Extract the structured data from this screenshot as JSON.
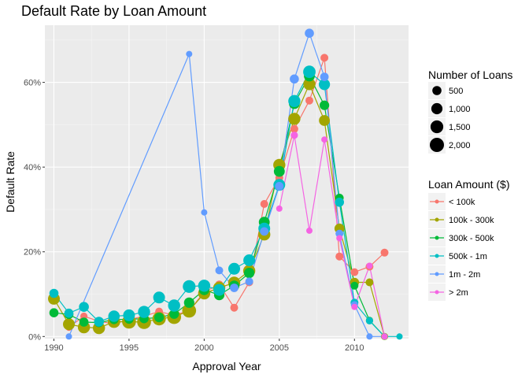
{
  "chart_data": {
    "type": "line",
    "title": "Default Rate by Loan Amount",
    "xlabel": "Approval Year",
    "ylabel": "Default Rate",
    "xlim": [
      1989.4,
      2013.6
    ],
    "ylim": [
      -0.5,
      73.5
    ],
    "x_ticks": [
      1990,
      1995,
      2000,
      2005,
      2010
    ],
    "y_ticks": [
      0,
      20,
      40,
      60
    ],
    "y_tick_labels": [
      "0%",
      "20%",
      "40%",
      "60%"
    ],
    "grid": true,
    "legend_position": "right",
    "size_legend": {
      "title": "Number of Loans",
      "entries": [
        {
          "label": "500",
          "value": 500
        },
        {
          "label": "1,000",
          "value": 1000
        },
        {
          "label": "1,500",
          "value": 1500
        },
        {
          "label": "2,000",
          "value": 2000
        }
      ]
    },
    "color_legend_title": "Loan Amount ($)",
    "series": [
      {
        "name": "< 100k",
        "color": "#F8766D",
        "points": [
          {
            "x": 1991,
            "y": 2.2,
            "n": 200
          },
          {
            "x": 1992,
            "y": 4.8,
            "n": 200
          },
          {
            "x": 1993,
            "y": 3.6,
            "n": 200
          },
          {
            "x": 1994,
            "y": 3.0,
            "n": 200
          },
          {
            "x": 1995,
            "y": 4.0,
            "n": 300
          },
          {
            "x": 1996,
            "y": 4.8,
            "n": 300
          },
          {
            "x": 1997,
            "y": 5.9,
            "n": 300
          },
          {
            "x": 1998,
            "y": 5.0,
            "n": 300
          },
          {
            "x": 1999,
            "y": 6.1,
            "n": 300
          },
          {
            "x": 2000,
            "y": 10.5,
            "n": 300
          },
          {
            "x": 2001,
            "y": 12.3,
            "n": 300
          },
          {
            "x": 2002,
            "y": 6.8,
            "n": 300
          },
          {
            "x": 2003,
            "y": 12.8,
            "n": 300
          },
          {
            "x": 2004,
            "y": 31.3,
            "n": 300
          },
          {
            "x": 2005,
            "y": 37.5,
            "n": 300
          },
          {
            "x": 2006,
            "y": 49.0,
            "n": 300
          },
          {
            "x": 2007,
            "y": 55.7,
            "n": 300
          },
          {
            "x": 2008,
            "y": 65.8,
            "n": 300
          },
          {
            "x": 2009,
            "y": 18.9,
            "n": 300
          },
          {
            "x": 2010,
            "y": 15.2,
            "n": 300
          },
          {
            "x": 2011,
            "y": 16.5,
            "n": 300
          },
          {
            "x": 2012,
            "y": 19.8,
            "n": 300
          }
        ]
      },
      {
        "name": "100k - 300k",
        "color": "#A3A500",
        "points": [
          {
            "x": 1990,
            "y": 8.9,
            "n": 1200
          },
          {
            "x": 1991,
            "y": 2.9,
            "n": 1200
          },
          {
            "x": 1992,
            "y": 2.2,
            "n": 1300
          },
          {
            "x": 1993,
            "y": 2.0,
            "n": 1300
          },
          {
            "x": 1994,
            "y": 3.5,
            "n": 1400
          },
          {
            "x": 1995,
            "y": 3.5,
            "n": 1900
          },
          {
            "x": 1996,
            "y": 3.4,
            "n": 1900
          },
          {
            "x": 1997,
            "y": 4.2,
            "n": 1700
          },
          {
            "x": 1998,
            "y": 4.6,
            "n": 1900
          },
          {
            "x": 1999,
            "y": 6.1,
            "n": 1900
          },
          {
            "x": 2000,
            "y": 10.2,
            "n": 1300
          },
          {
            "x": 2001,
            "y": 11.5,
            "n": 1300
          },
          {
            "x": 2002,
            "y": 12.7,
            "n": 1300
          },
          {
            "x": 2003,
            "y": 15.5,
            "n": 1300
          },
          {
            "x": 2004,
            "y": 24.1,
            "n": 1300
          },
          {
            "x": 2005,
            "y": 40.5,
            "n": 1300
          },
          {
            "x": 2006,
            "y": 51.4,
            "n": 1300
          },
          {
            "x": 2007,
            "y": 59.6,
            "n": 1300
          },
          {
            "x": 2008,
            "y": 51.0,
            "n": 900
          },
          {
            "x": 2009,
            "y": 25.5,
            "n": 700
          },
          {
            "x": 2010,
            "y": 12.8,
            "n": 500
          },
          {
            "x": 2011,
            "y": 12.8,
            "n": 300
          },
          {
            "x": 2012,
            "y": 0.0,
            "n": 200
          }
        ]
      },
      {
        "name": "300k - 500k",
        "color": "#00BA38",
        "points": [
          {
            "x": 1990,
            "y": 5.6,
            "n": 500
          },
          {
            "x": 1991,
            "y": 5.2,
            "n": 500
          },
          {
            "x": 1992,
            "y": 3.4,
            "n": 500
          },
          {
            "x": 1993,
            "y": 3.3,
            "n": 500
          },
          {
            "x": 1994,
            "y": 4.0,
            "n": 500
          },
          {
            "x": 1995,
            "y": 4.1,
            "n": 500
          },
          {
            "x": 1996,
            "y": 4.2,
            "n": 500
          },
          {
            "x": 1997,
            "y": 4.5,
            "n": 600
          },
          {
            "x": 1998,
            "y": 5.3,
            "n": 600
          },
          {
            "x": 1999,
            "y": 8.0,
            "n": 800
          },
          {
            "x": 2000,
            "y": 11.0,
            "n": 800
          },
          {
            "x": 2001,
            "y": 9.8,
            "n": 800
          },
          {
            "x": 2002,
            "y": 12.0,
            "n": 800
          },
          {
            "x": 2003,
            "y": 15.0,
            "n": 800
          },
          {
            "x": 2004,
            "y": 27.0,
            "n": 900
          },
          {
            "x": 2005,
            "y": 39.0,
            "n": 900
          },
          {
            "x": 2006,
            "y": 55.0,
            "n": 900
          },
          {
            "x": 2007,
            "y": 61.5,
            "n": 900
          },
          {
            "x": 2008,
            "y": 54.6,
            "n": 600
          },
          {
            "x": 2009,
            "y": 32.7,
            "n": 400
          },
          {
            "x": 2010,
            "y": 12.0,
            "n": 300
          },
          {
            "x": 2011,
            "y": 3.8,
            "n": 200
          },
          {
            "x": 2012,
            "y": 0.0,
            "n": 100
          }
        ]
      },
      {
        "name": "500k - 1m",
        "color": "#00BFC4",
        "points": [
          {
            "x": 1990,
            "y": 10.2,
            "n": 500
          },
          {
            "x": 1991,
            "y": 5.5,
            "n": 500
          },
          {
            "x": 1992,
            "y": 7.0,
            "n": 700
          },
          {
            "x": 1993,
            "y": 3.5,
            "n": 700
          },
          {
            "x": 1994,
            "y": 4.8,
            "n": 1100
          },
          {
            "x": 1995,
            "y": 5.0,
            "n": 1200
          },
          {
            "x": 1996,
            "y": 5.8,
            "n": 1300
          },
          {
            "x": 1997,
            "y": 9.2,
            "n": 1200
          },
          {
            "x": 1998,
            "y": 7.3,
            "n": 1300
          },
          {
            "x": 1999,
            "y": 11.8,
            "n": 1500
          },
          {
            "x": 2000,
            "y": 12.0,
            "n": 1300
          },
          {
            "x": 2001,
            "y": 11.0,
            "n": 1200
          },
          {
            "x": 2002,
            "y": 16.0,
            "n": 1200
          },
          {
            "x": 2003,
            "y": 18.0,
            "n": 1200
          },
          {
            "x": 2004,
            "y": 25.5,
            "n": 1200
          },
          {
            "x": 2005,
            "y": 35.8,
            "n": 1200
          },
          {
            "x": 2006,
            "y": 55.6,
            "n": 1300
          },
          {
            "x": 2007,
            "y": 62.5,
            "n": 1400
          },
          {
            "x": 2008,
            "y": 59.5,
            "n": 1000
          },
          {
            "x": 2009,
            "y": 31.7,
            "n": 500
          },
          {
            "x": 2010,
            "y": 8.0,
            "n": 300
          },
          {
            "x": 2011,
            "y": 3.7,
            "n": 200
          },
          {
            "x": 2012,
            "y": 0.0,
            "n": 100
          },
          {
            "x": 2013,
            "y": 0.0,
            "n": 100
          }
        ]
      },
      {
        "name": "1m - 2m",
        "color": "#619CFF",
        "points": [
          {
            "x": 1991,
            "y": 0.0,
            "n": 100
          },
          {
            "x": 1999,
            "y": 66.7,
            "n": 100
          },
          {
            "x": 2000,
            "y": 29.3,
            "n": 100
          },
          {
            "x": 2001,
            "y": 15.6,
            "n": 300
          },
          {
            "x": 2002,
            "y": 11.5,
            "n": 400
          },
          {
            "x": 2003,
            "y": 13.0,
            "n": 300
          },
          {
            "x": 2004,
            "y": 24.8,
            "n": 400
          },
          {
            "x": 2005,
            "y": 35.5,
            "n": 400
          },
          {
            "x": 2006,
            "y": 60.8,
            "n": 500
          },
          {
            "x": 2007,
            "y": 71.6,
            "n": 500
          },
          {
            "x": 2008,
            "y": 61.3,
            "n": 400
          },
          {
            "x": 2009,
            "y": 24.3,
            "n": 300
          },
          {
            "x": 2010,
            "y": 7.5,
            "n": 200
          },
          {
            "x": 2011,
            "y": 0.0,
            "n": 100
          },
          {
            "x": 2012,
            "y": 0.0,
            "n": 100
          }
        ]
      },
      {
        "name": "> 2m",
        "color": "#F564E3",
        "points": [
          {
            "x": 2005,
            "y": 30.2,
            "n": 100
          },
          {
            "x": 2006,
            "y": 47.5,
            "n": 200
          },
          {
            "x": 2007,
            "y": 25.0,
            "n": 100
          },
          {
            "x": 2008,
            "y": 46.5,
            "n": 100
          },
          {
            "x": 2009,
            "y": 23.2,
            "n": 100
          },
          {
            "x": 2010,
            "y": 7.0,
            "n": 100
          },
          {
            "x": 2011,
            "y": 16.7,
            "n": 100
          },
          {
            "x": 2012,
            "y": 0.0,
            "n": 100
          }
        ]
      }
    ]
  }
}
